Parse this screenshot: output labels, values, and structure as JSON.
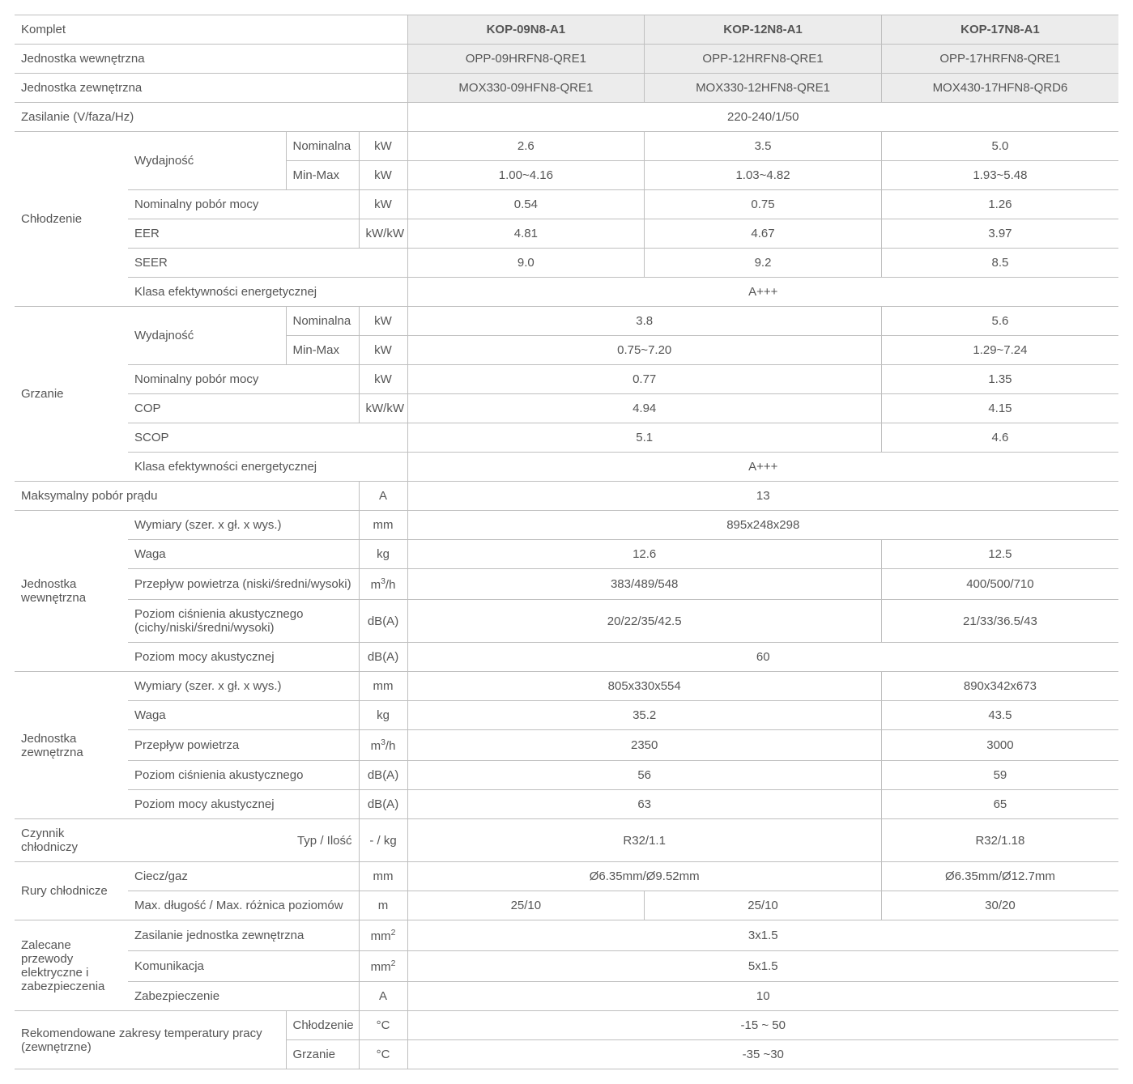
{
  "header": {
    "komplet": "Komplet",
    "models": [
      "KOP-09N8-A1",
      "KOP-12N8-A1",
      "KOP-17N8-A1"
    ]
  },
  "jednostka_wewnetrzna_row": {
    "label": "Jednostka wewnętrzna",
    "vals": [
      "OPP-09HRFN8-QRE1",
      "OPP-12HRFN8-QRE1",
      "OPP-17HRFN8-QRE1"
    ]
  },
  "jednostka_zewnetrzna_row": {
    "label": "Jednostka zewnętrzna",
    "vals": [
      "MOX330-09HFN8-QRE1",
      "MOX330-12HFN8-QRE1",
      "MOX430-17HFN8-QRD6"
    ]
  },
  "zasilanie": {
    "label": "Zasilanie (V/faza/Hz)",
    "val": "220-240/1/50"
  },
  "chlodzenie": {
    "label": "Chłodzenie",
    "wydajnosc": "Wydajność",
    "nominalna": {
      "label": "Nominalna",
      "unit": "kW",
      "vals": [
        "2.6",
        "3.5",
        "5.0"
      ]
    },
    "minmax": {
      "label": "Min-Max",
      "unit": "kW",
      "vals": [
        "1.00~4.16",
        "1.03~4.82",
        "1.93~5.48"
      ]
    },
    "nom_pobor": {
      "label": "Nominalny pobór mocy",
      "unit": "kW",
      "vals": [
        "0.54",
        "0.75",
        "1.26"
      ]
    },
    "eer": {
      "label": "EER",
      "unit": "kW/kW",
      "vals": [
        "4.81",
        "4.67",
        "3.97"
      ]
    },
    "seer": {
      "label": "SEER",
      "vals": [
        "9.0",
        "9.2",
        "8.5"
      ]
    },
    "klasa": {
      "label": "Klasa efektywności energetycznej",
      "val": "A+++"
    }
  },
  "grzanie": {
    "label": "Grzanie",
    "wydajnosc": "Wydajność",
    "nominalna": {
      "label": "Nominalna",
      "unit": "kW",
      "val12": "3.8",
      "val3": "5.6"
    },
    "minmax": {
      "label": "Min-Max",
      "unit": "kW",
      "val12": "0.75~7.20",
      "val3": "1.29~7.24"
    },
    "nom_pobor": {
      "label": "Nominalny pobór mocy",
      "unit": "kW",
      "val12": "0.77",
      "val3": "1.35"
    },
    "cop": {
      "label": "COP",
      "unit": "kW/kW",
      "val12": "4.94",
      "val3": "4.15"
    },
    "scop": {
      "label": "SCOP",
      "val12": "5.1",
      "val3": "4.6"
    },
    "klasa": {
      "label": "Klasa efektywności energetycznej",
      "val": "A+++"
    }
  },
  "max_pobor_pradu": {
    "label": "Maksymalny pobór prądu",
    "unit": "A",
    "val": "13"
  },
  "jw": {
    "label": "Jednostka wewnętrzna",
    "wymiary": {
      "label": "Wymiary (szer. x gł. x wys.)",
      "unit": "mm",
      "val": "895x248x298"
    },
    "waga": {
      "label": "Waga",
      "unit": "kg",
      "val12": "12.6",
      "val3": "12.5"
    },
    "przeplyw": {
      "label": "Przepływ powietrza (niski/średni/wysoki)",
      "unit_html": "m<sup>3</sup>/h",
      "val12": "383/489/548",
      "val3": "400/500/710"
    },
    "cisnienie": {
      "label": "Poziom ciśnienia akustycznego (cichy/niski/średni/wysoki)",
      "unit": "dB(A)",
      "val12": "20/22/35/42.5",
      "val3": "21/33/36.5/43"
    },
    "moc_ak": {
      "label": "Poziom mocy akustycznej",
      "unit": "dB(A)",
      "val": "60"
    }
  },
  "jz": {
    "label": "Jednostka zewnętrzna",
    "wymiary": {
      "label": "Wymiary (szer. x gł. x wys.)",
      "unit": "mm",
      "val12": "805x330x554",
      "val3": "890x342x673"
    },
    "waga": {
      "label": "Waga",
      "unit": "kg",
      "val12": "35.2",
      "val3": "43.5"
    },
    "przeplyw": {
      "label": "Przepływ powietrza",
      "unit_html": "m<sup>3</sup>/h",
      "val12": "2350",
      "val3": "3000"
    },
    "cisnienie": {
      "label": "Poziom ciśnienia akustycznego",
      "unit": "dB(A)",
      "val12": "56",
      "val3": "59"
    },
    "moc_ak": {
      "label": "Poziom mocy akustycznej",
      "unit": "dB(A)",
      "val12": "63",
      "val3": "65"
    }
  },
  "czynnik": {
    "label": "Czynnik chłodniczy",
    "sub": "Typ / Ilość",
    "unit": "- / kg",
    "val12": "R32/1.1",
    "val3": "R32/1.18"
  },
  "rury": {
    "label": "Rury chłodnicze",
    "ciecz": {
      "label": "Ciecz/gaz",
      "unit": "mm",
      "val12": "Ø6.35mm/Ø9.52mm",
      "val3": "Ø6.35mm/Ø12.7mm"
    },
    "max": {
      "label": "Max. długość / Max. różnica poziomów",
      "unit": "m",
      "vals": [
        "25/10",
        "25/10",
        "30/20"
      ]
    }
  },
  "przewody": {
    "label": "Zalecane przewody elektryczne i zabezpieczenia",
    "zasilanie": {
      "label": "Zasilanie jednostka zewnętrzna",
      "unit_html": "mm<sup>2</sup>",
      "val": "3x1.5"
    },
    "komunikacja": {
      "label": "Komunikacja",
      "unit_html": "mm<sup>2</sup>",
      "val": "5x1.5"
    },
    "zabezp": {
      "label": "Zabezpieczenie",
      "unit": "A",
      "val": "10"
    }
  },
  "temp": {
    "label": "Rekomendowane zakresy temperatury pracy (zewnętrzne)",
    "chlodzenie": {
      "label": "Chłodzenie",
      "unit": "°C",
      "val": "-15 ~ 50"
    },
    "grzanie": {
      "label": "Grzanie",
      "unit": "°C",
      "val": "-35 ~30"
    }
  }
}
